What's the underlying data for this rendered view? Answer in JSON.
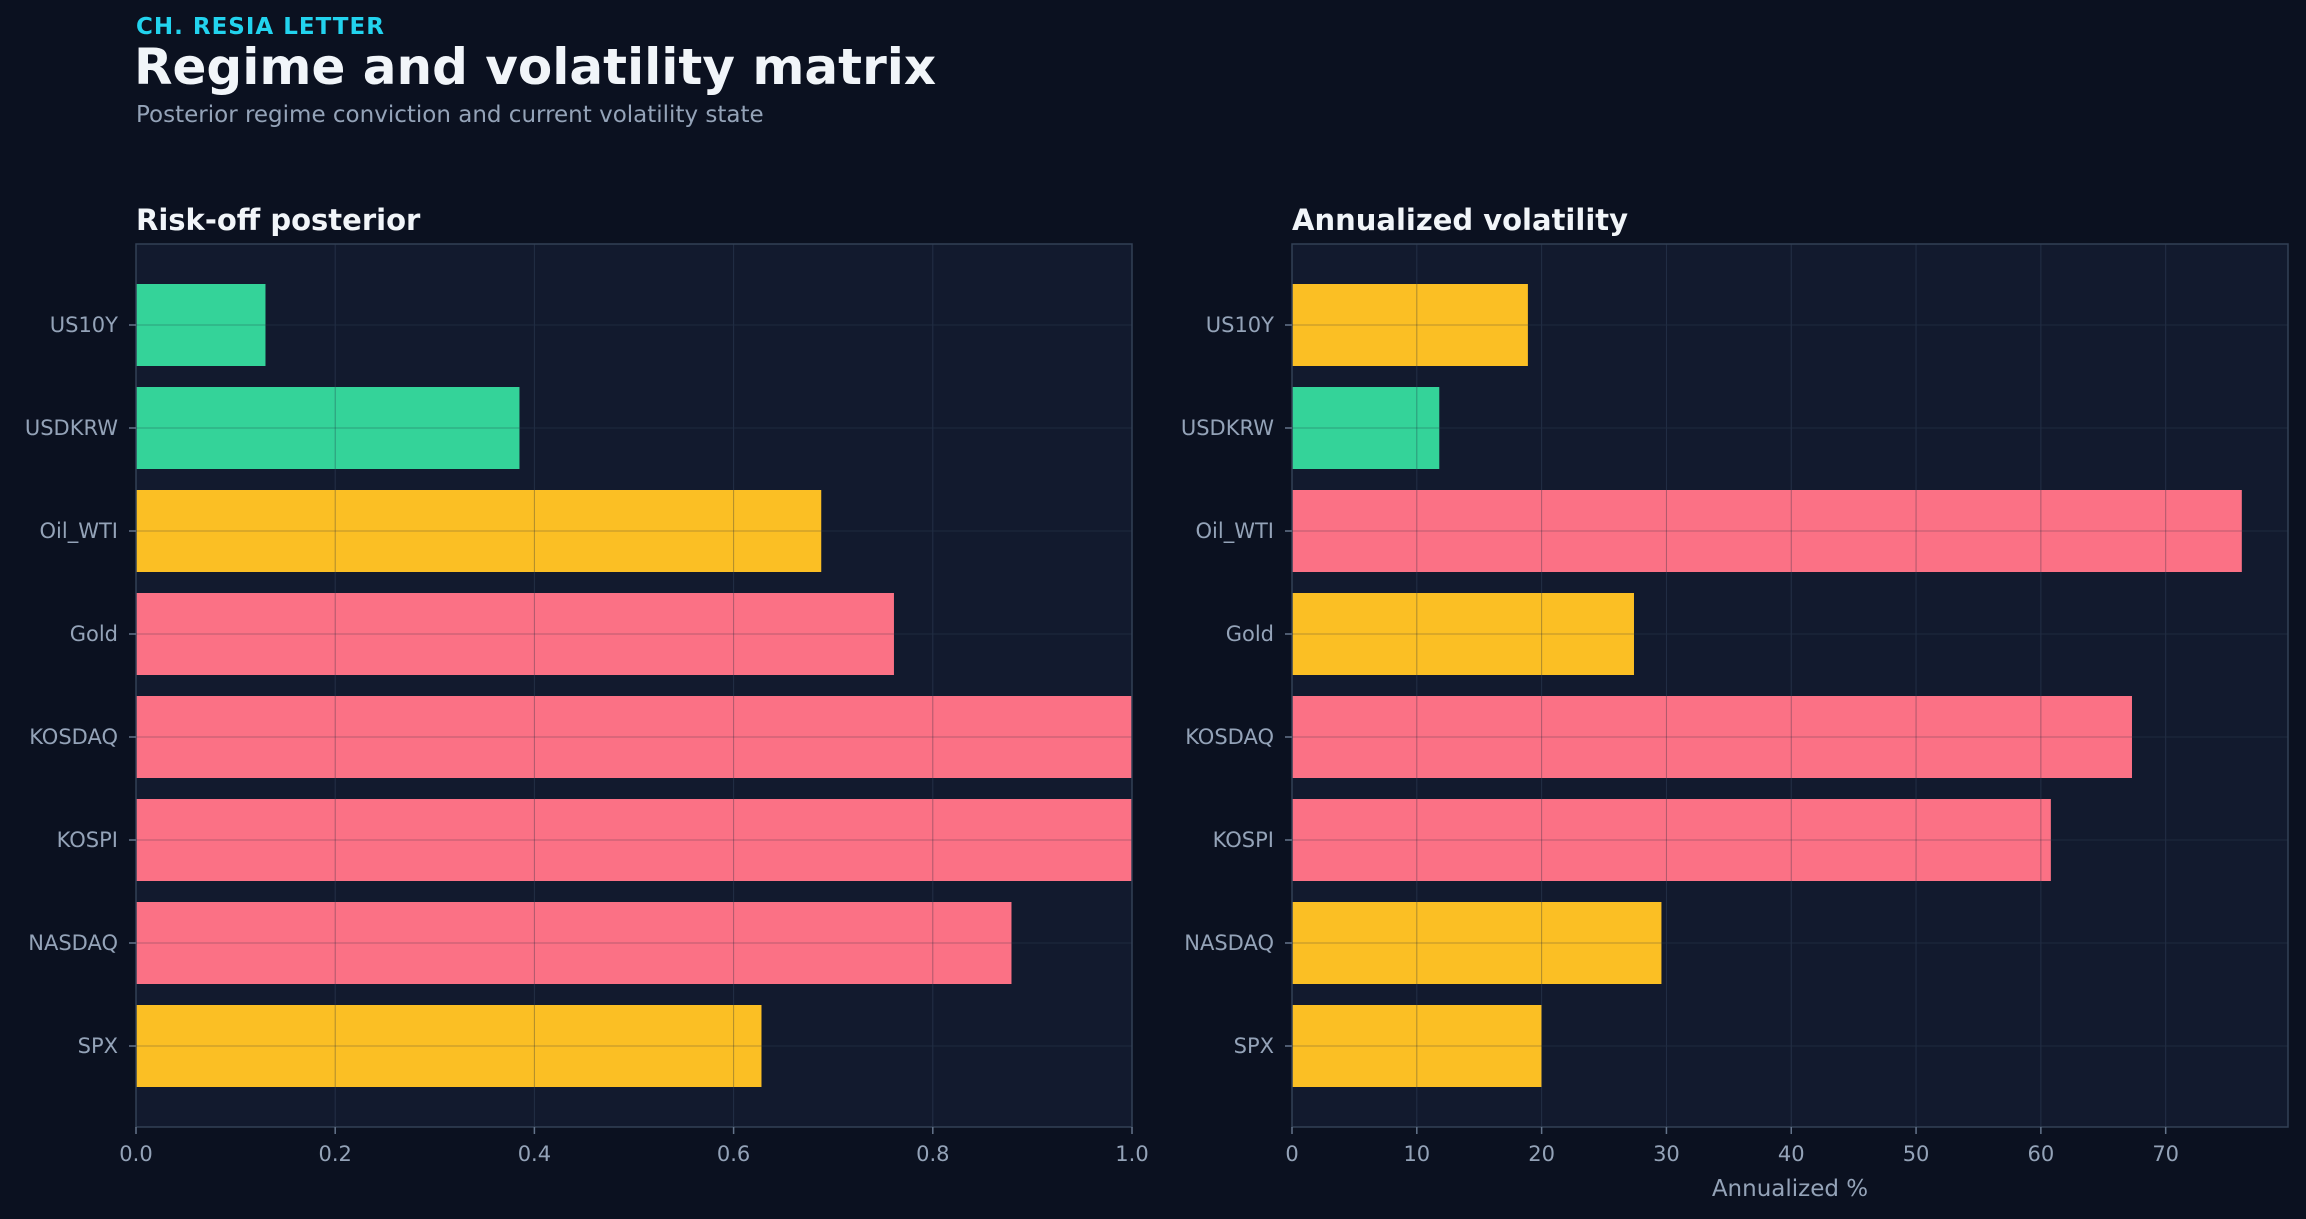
{
  "header": {
    "eyebrow": "CH. RESIA LETTER",
    "title": "Regime and volatility matrix",
    "subtitle": "Posterior regime conviction and current volatility state"
  },
  "colors": {
    "background": "#0b1120",
    "panel": "#121a2e",
    "green": "#34d399",
    "amber": "#fbbf24",
    "red": "#fb7185",
    "text_muted": "#94a3b8",
    "eyebrow": "#22d3ee"
  },
  "chart_data": [
    {
      "type": "bar",
      "orientation": "horizontal",
      "title": "Risk-off posterior",
      "xlabel": "",
      "ylabel": "",
      "categories": [
        "US10Y",
        "USDKRW",
        "Oil_WTI",
        "Gold",
        "KOSDAQ",
        "KOSPI",
        "NASDAQ",
        "SPX"
      ],
      "values": [
        0.13,
        0.385,
        0.688,
        0.761,
        1.0,
        1.0,
        0.879,
        0.628
      ],
      "bar_colors": [
        "green",
        "green",
        "amber",
        "red",
        "red",
        "red",
        "red",
        "amber"
      ],
      "xlim": [
        0,
        1.0
      ],
      "xticks": [
        "0.0",
        "0.2",
        "0.4",
        "0.6",
        "0.8",
        "1.0"
      ],
      "xtick_values": [
        0,
        0.2,
        0.4,
        0.6,
        0.8,
        1.0
      ],
      "grid": true
    },
    {
      "type": "bar",
      "orientation": "horizontal",
      "title": "Annualized volatility",
      "xlabel": "Annualized %",
      "ylabel": "",
      "categories": [
        "US10Y",
        "USDKRW",
        "Oil_WTI",
        "Gold",
        "KOSDAQ",
        "KOSPI",
        "NASDAQ",
        "SPX"
      ],
      "values": [
        18.9,
        11.8,
        76.1,
        27.4,
        67.3,
        60.8,
        29.6,
        20.0
      ],
      "bar_colors": [
        "amber",
        "green",
        "red",
        "amber",
        "red",
        "red",
        "amber",
        "amber"
      ],
      "xlim": [
        0,
        79.8
      ],
      "xticks": [
        "0",
        "10",
        "20",
        "30",
        "40",
        "50",
        "60",
        "70"
      ],
      "xtick_values": [
        0,
        10,
        20,
        30,
        40,
        50,
        60,
        70
      ],
      "grid": true
    }
  ]
}
